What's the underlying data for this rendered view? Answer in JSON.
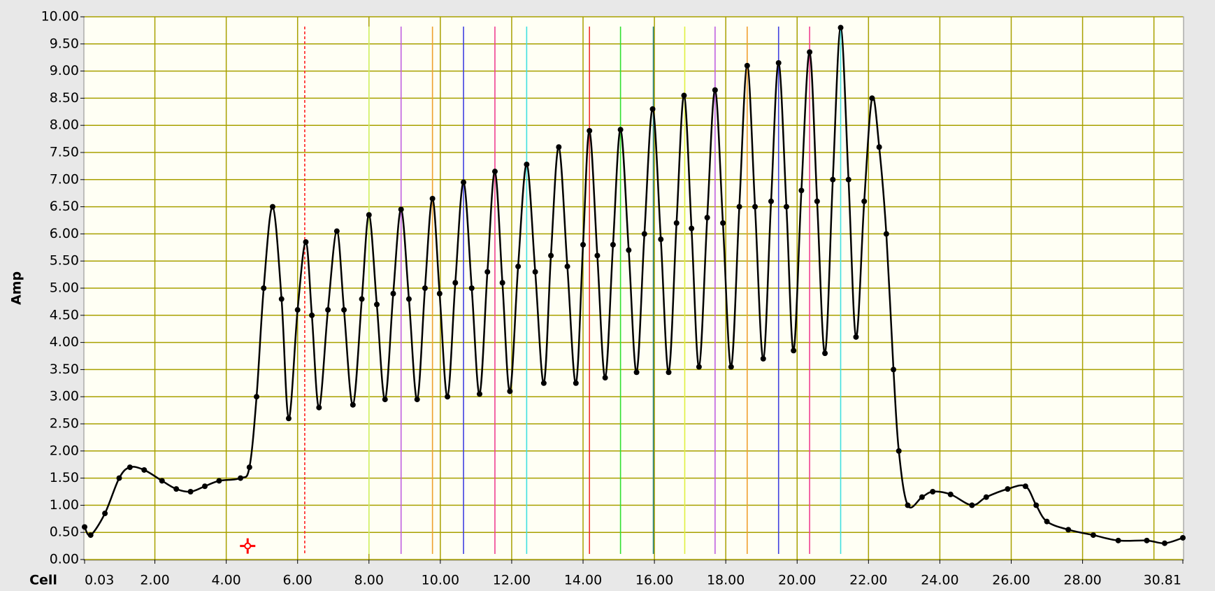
{
  "chart_data": {
    "type": "line",
    "ylabel": "Amp",
    "xlabel": "Cell",
    "xlim": [
      0.03,
      30.81
    ],
    "ylim": [
      0,
      10
    ],
    "xticks": [
      0.03,
      {
        "value": 2,
        "label": "2.00"
      },
      {
        "value": 4,
        "label": "4.00"
      },
      {
        "value": 6,
        "label": "6.00"
      },
      {
        "value": 8,
        "label": "8.00"
      },
      {
        "value": 10,
        "label": "10.00"
      },
      {
        "value": 12,
        "label": "12.00"
      },
      {
        "value": 14,
        "label": "14.00"
      },
      {
        "value": 16,
        "label": "16.00"
      },
      {
        "value": 18,
        "label": "18.00"
      },
      {
        "value": 20,
        "label": "20.00"
      },
      {
        "value": 22,
        "label": "22.00"
      },
      {
        "value": 24,
        "label": "24.00"
      },
      {
        "value": 26,
        "label": "26.00"
      },
      {
        "value": 28,
        "label": "28.00"
      },
      30.81
    ],
    "xgrid": [
      2,
      4,
      6,
      8,
      10,
      12,
      14,
      16,
      18,
      20,
      22,
      24,
      26,
      28,
      30
    ],
    "yticks": [
      {
        "value": 0,
        "label": "0.00"
      },
      {
        "value": 0.5,
        "label": "0.50"
      },
      {
        "value": 1,
        "label": "1.00"
      },
      {
        "value": 1.5,
        "label": "1.50"
      },
      {
        "value": 2,
        "label": "2.00"
      },
      {
        "value": 2.5,
        "label": "2.50"
      },
      {
        "value": 3,
        "label": "3.00"
      },
      {
        "value": 3.5,
        "label": "3.50"
      },
      {
        "value": 4,
        "label": "4.00"
      },
      {
        "value": 4.5,
        "label": "4.50"
      },
      {
        "value": 5,
        "label": "5.00"
      },
      {
        "value": 5.5,
        "label": "5.50"
      },
      {
        "value": 6,
        "label": "6.00"
      },
      {
        "value": 6.5,
        "label": "6.50"
      },
      {
        "value": 7,
        "label": "7.00"
      },
      {
        "value": 7.5,
        "label": "7.50"
      },
      {
        "value": 8,
        "label": "8.00"
      },
      {
        "value": 8.5,
        "label": "8.50"
      },
      {
        "value": 9,
        "label": "9.00"
      },
      {
        "value": 9.5,
        "label": "9.50"
      },
      {
        "value": 10,
        "label": "10.00"
      }
    ],
    "grid": true,
    "grid_color": "#a8a000",
    "x": [
      0.03,
      0.2,
      0.6,
      1.0,
      1.3,
      1.7,
      2.2,
      2.6,
      3.0,
      3.4,
      3.8,
      4.4,
      4.65,
      4.85,
      5.05,
      5.3,
      5.55,
      5.75,
      6.0,
      6.23,
      6.4,
      6.6,
      6.85,
      7.1,
      7.3,
      7.55,
      7.8,
      8.0,
      8.22,
      8.45,
      8.68,
      8.9,
      9.12,
      9.35,
      9.57,
      9.78,
      9.98,
      10.2,
      10.42,
      10.65,
      10.88,
      11.1,
      11.32,
      11.53,
      11.74,
      11.95,
      12.18,
      12.42,
      12.66,
      12.9,
      13.1,
      13.32,
      13.56,
      13.8,
      14.0,
      14.18,
      14.4,
      14.62,
      14.84,
      15.05,
      15.28,
      15.5,
      15.72,
      15.95,
      16.18,
      16.4,
      16.62,
      16.83,
      17.04,
      17.25,
      17.48,
      17.7,
      17.92,
      18.15,
      18.38,
      18.6,
      18.82,
      19.05,
      19.27,
      19.48,
      19.7,
      19.9,
      20.12,
      20.35,
      20.56,
      20.78,
      21.0,
      21.22,
      21.44,
      21.65,
      21.88,
      22.1,
      22.3,
      22.5,
      22.7,
      22.85,
      23.1,
      23.5,
      23.8,
      24.3,
      24.9,
      25.3,
      25.9,
      26.4,
      26.7,
      27.0,
      27.6,
      28.3,
      29.0,
      29.8,
      30.3,
      30.81
    ],
    "series": [
      {
        "name": "Amp",
        "color": "#000000",
        "values": [
          0.6,
          0.45,
          0.85,
          1.5,
          1.7,
          1.65,
          1.45,
          1.3,
          1.25,
          1.35,
          1.45,
          1.5,
          1.7,
          3.0,
          5.0,
          6.5,
          4.8,
          2.6,
          4.6,
          5.85,
          4.5,
          2.8,
          4.6,
          6.05,
          4.6,
          2.85,
          4.8,
          6.35,
          4.7,
          2.95,
          4.9,
          6.45,
          4.8,
          2.95,
          5.0,
          6.65,
          4.9,
          3.0,
          5.1,
          6.95,
          5.0,
          3.05,
          5.3,
          7.15,
          5.1,
          3.1,
          5.4,
          7.28,
          5.3,
          3.25,
          5.6,
          7.6,
          5.4,
          3.25,
          5.8,
          7.9,
          5.6,
          3.35,
          5.8,
          7.92,
          5.7,
          3.45,
          6.0,
          8.3,
          5.9,
          3.45,
          6.2,
          8.55,
          6.1,
          3.55,
          6.3,
          8.65,
          6.2,
          3.55,
          6.5,
          9.1,
          6.5,
          3.7,
          6.6,
          9.15,
          6.5,
          3.85,
          6.8,
          9.35,
          6.6,
          3.8,
          7.0,
          9.8,
          7.0,
          4.1,
          6.6,
          8.5,
          7.6,
          6.0,
          3.5,
          2.0,
          1.0,
          1.15,
          1.25,
          1.2,
          1.0,
          1.15,
          1.3,
          1.35,
          1.0,
          0.7,
          0.55,
          0.45,
          0.35,
          0.35,
          0.3,
          0.4
        ]
      }
    ],
    "cursors": [
      {
        "x": 6.2,
        "color": "#ff2020",
        "style": "dashed"
      },
      {
        "x": 8.0,
        "color": "#d0f060"
      },
      {
        "x": 8.9,
        "color": "#c060e0"
      },
      {
        "x": 9.78,
        "color": "#f0a030"
      },
      {
        "x": 10.65,
        "color": "#4040e0"
      },
      {
        "x": 11.53,
        "color": "#f04090"
      },
      {
        "x": 12.42,
        "color": "#40e0e0"
      },
      {
        "x": 14.18,
        "color": "#f03030"
      },
      {
        "x": 15.05,
        "color": "#30e030"
      },
      {
        "x": 15.97,
        "color": "#208080"
      },
      {
        "x": 16.85,
        "color": "#e0f040"
      },
      {
        "x": 17.7,
        "color": "#c060e0"
      },
      {
        "x": 18.6,
        "color": "#f0a030"
      },
      {
        "x": 19.48,
        "color": "#4040e0"
      },
      {
        "x": 20.35,
        "color": "#f04090"
      },
      {
        "x": 21.22,
        "color": "#40e0e0"
      }
    ],
    "marker": {
      "x": 4.6,
      "y": 0.25,
      "color": "#ff0000"
    }
  }
}
